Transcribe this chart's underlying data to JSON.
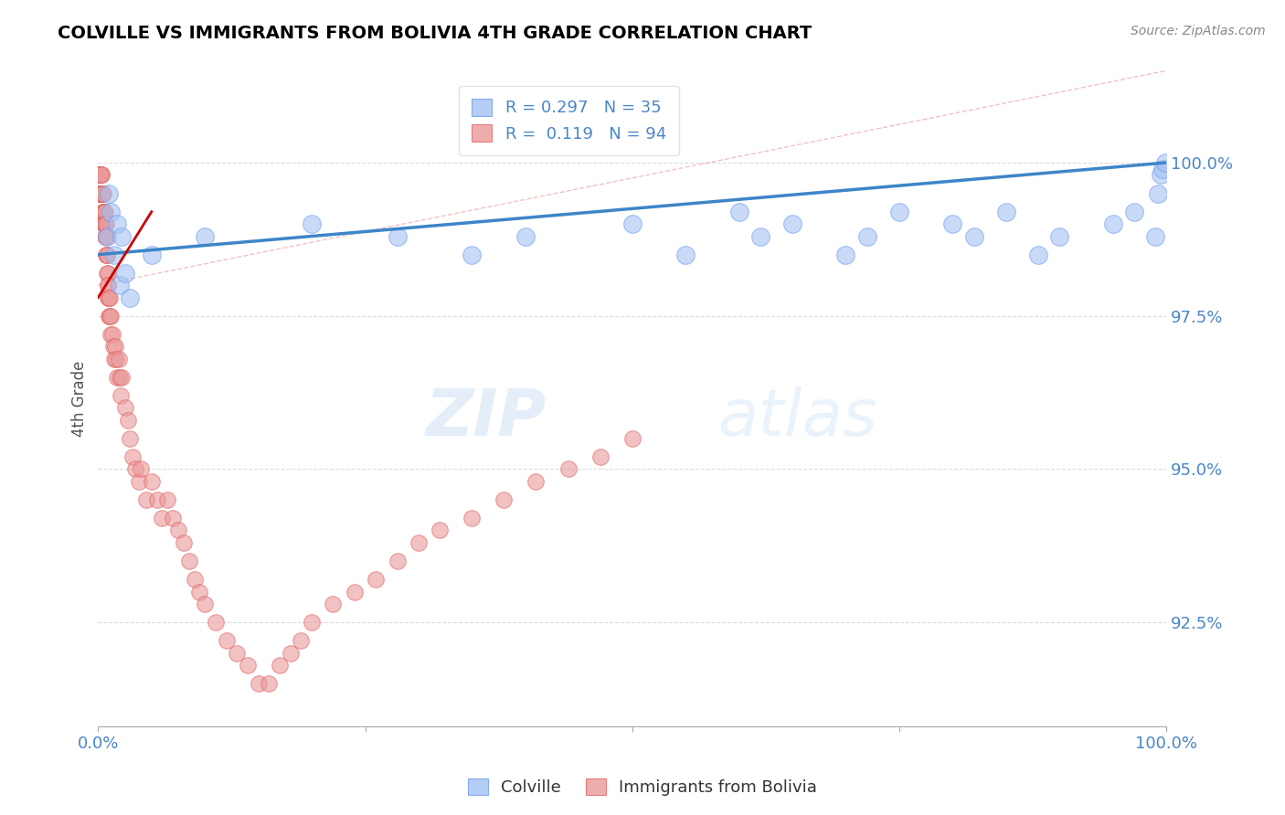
{
  "title": "COLVILLE VS IMMIGRANTS FROM BOLIVIA 4TH GRADE CORRELATION CHART",
  "source": "Source: ZipAtlas.com",
  "ylabel": "4th Grade",
  "colville_R": 0.297,
  "colville_N": 35,
  "bolivia_R": 0.119,
  "bolivia_N": 94,
  "colville_color": "#a4c2f4",
  "bolivia_color": "#ea9999",
  "colville_edge_color": "#6d9eeb",
  "bolivia_edge_color": "#e06666",
  "colville_line_color": "#3d85c8",
  "bolivia_line_color": "#cc0000",
  "background_color": "#ffffff",
  "grid_color": "#cccccc",
  "title_color": "#000000",
  "axis_color": "#4a86c8",
  "colville_x": [
    0.8,
    1.0,
    1.2,
    1.5,
    1.8,
    2.0,
    2.2,
    2.5,
    3.0,
    5.0,
    10.0,
    20.0,
    28.0,
    35.0,
    40.0,
    50.0,
    55.0,
    60.0,
    62.0,
    65.0,
    70.0,
    72.0,
    75.0,
    80.0,
    82.0,
    85.0,
    88.0,
    90.0,
    95.0,
    97.0,
    99.0,
    99.2,
    99.5,
    99.7,
    99.9
  ],
  "colville_y": [
    98.8,
    99.5,
    99.2,
    98.5,
    99.0,
    98.0,
    98.8,
    98.2,
    97.8,
    98.5,
    98.8,
    99.0,
    98.8,
    98.5,
    98.8,
    99.0,
    98.5,
    99.2,
    98.8,
    99.0,
    98.5,
    98.8,
    99.2,
    99.0,
    98.8,
    99.2,
    98.5,
    98.8,
    99.0,
    99.2,
    98.8,
    99.5,
    99.8,
    99.9,
    100.0
  ],
  "bolivia_x": [
    0.05,
    0.08,
    0.1,
    0.12,
    0.15,
    0.18,
    0.2,
    0.22,
    0.25,
    0.28,
    0.3,
    0.32,
    0.35,
    0.38,
    0.4,
    0.42,
    0.45,
    0.48,
    0.5,
    0.52,
    0.55,
    0.58,
    0.6,
    0.62,
    0.65,
    0.68,
    0.7,
    0.72,
    0.75,
    0.78,
    0.8,
    0.82,
    0.85,
    0.88,
    0.9,
    0.92,
    0.95,
    0.98,
    1.0,
    1.05,
    1.1,
    1.15,
    1.2,
    1.3,
    1.4,
    1.5,
    1.6,
    1.7,
    1.8,
    1.9,
    2.0,
    2.1,
    2.2,
    2.5,
    2.8,
    3.0,
    3.2,
    3.5,
    3.8,
    4.0,
    4.5,
    5.0,
    5.5,
    6.0,
    6.5,
    7.0,
    7.5,
    8.0,
    8.5,
    9.0,
    9.5,
    10.0,
    11.0,
    12.0,
    13.0,
    14.0,
    15.0,
    16.0,
    17.0,
    18.0,
    19.0,
    20.0,
    22.0,
    24.0,
    26.0,
    28.0,
    30.0,
    32.0,
    35.0,
    38.0,
    41.0,
    44.0,
    47.0,
    50.0
  ],
  "bolivia_y": [
    99.8,
    99.5,
    99.8,
    99.5,
    99.8,
    99.5,
    99.8,
    99.5,
    99.8,
    99.5,
    99.8,
    99.5,
    99.8,
    99.5,
    99.2,
    99.5,
    99.2,
    99.5,
    99.0,
    99.2,
    99.0,
    99.2,
    99.0,
    99.2,
    99.0,
    98.8,
    99.0,
    98.8,
    98.5,
    98.8,
    98.5,
    98.2,
    98.5,
    98.2,
    98.0,
    97.8,
    98.0,
    97.8,
    97.5,
    97.8,
    97.5,
    97.2,
    97.5,
    97.2,
    97.0,
    96.8,
    97.0,
    96.8,
    96.5,
    96.8,
    96.5,
    96.2,
    96.5,
    96.0,
    95.8,
    95.5,
    95.2,
    95.0,
    94.8,
    95.0,
    94.5,
    94.8,
    94.5,
    94.2,
    94.5,
    94.2,
    94.0,
    93.8,
    93.5,
    93.2,
    93.0,
    92.8,
    92.5,
    92.2,
    92.0,
    91.8,
    91.5,
    91.5,
    91.8,
    92.0,
    92.2,
    92.5,
    92.8,
    93.0,
    93.2,
    93.5,
    93.8,
    94.0,
    94.2,
    94.5,
    94.8,
    95.0,
    95.2,
    95.5
  ],
  "ylim_bottom": 90.8,
  "ylim_top": 101.5,
  "xlim_left": 0,
  "xlim_right": 100
}
